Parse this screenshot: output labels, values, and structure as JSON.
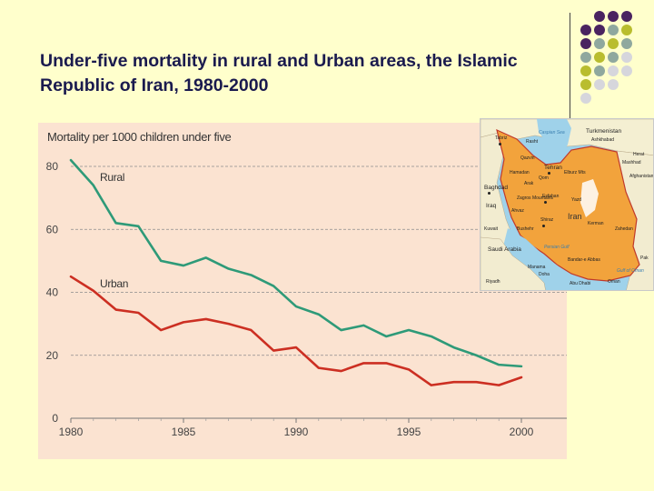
{
  "slide": {
    "title": "Under-five mortality in rural and Urban areas, the Islamic Republic of Iran, 1980-2000"
  },
  "decor": {
    "dot_colors": [
      "#4a2360",
      "#8fa89e",
      "#b9bd2e",
      "#d6d6dc"
    ]
  },
  "chart_data": {
    "type": "line",
    "title": "Mortality per 1000 children under five",
    "xlabel": "",
    "ylabel": "",
    "xlim": [
      1980,
      2000
    ],
    "ylim": [
      0,
      80
    ],
    "xticks": [
      1980,
      1985,
      1990,
      1995,
      2000
    ],
    "yticks": [
      0,
      20,
      40,
      60,
      80
    ],
    "grid": true,
    "series": [
      {
        "name": "Rural",
        "color": "#2e9a78",
        "x": [
          1980,
          1981,
          1982,
          1983,
          1984,
          1985,
          1986,
          1987,
          1988,
          1989,
          1990,
          1991,
          1992,
          1993,
          1994,
          1995,
          1996,
          1997,
          1998,
          1999,
          2000
        ],
        "values": [
          82,
          74,
          62,
          61,
          50,
          48.5,
          51,
          47.5,
          45.5,
          42,
          35.5,
          33,
          28,
          29.5,
          26,
          28,
          26,
          22.5,
          20,
          17,
          16.5
        ]
      },
      {
        "name": "Urban",
        "color": "#cc2f22",
        "x": [
          1980,
          1981,
          1982,
          1983,
          1984,
          1985,
          1986,
          1987,
          1988,
          1989,
          1990,
          1991,
          1992,
          1993,
          1994,
          1995,
          1996,
          1997,
          1998,
          1999,
          2000
        ],
        "values": [
          45,
          40.5,
          34.5,
          33.5,
          28,
          30.5,
          31.5,
          30,
          28,
          21.5,
          22.5,
          16,
          15,
          17.5,
          17.5,
          15.5,
          10.5,
          11.5,
          11.5,
          10.5,
          13
        ]
      }
    ]
  },
  "map": {
    "country": "Iran",
    "labels": {
      "caspian": "Caspian Sea",
      "turkmenistan": "Turkmenistan",
      "ashkhabad": "Ashkhabad",
      "rasht": "Rasht",
      "tabriz": "Tabriz",
      "tehran": "Tehran",
      "qazvin": "Qazvin",
      "mashhad": "Mashhad",
      "hamadan": "Hamadan",
      "elburz": "Elburz Mts",
      "qom": "Qom",
      "arak": "Arak",
      "baghdad": "Baghdad",
      "iraq": "Iraq",
      "ahvaz": "Ahvaz",
      "kuwait": "Kuwait",
      "esfahan": "Esfahan",
      "zagros": "Zagros Mountains",
      "yazd": "Yazd",
      "shiraz": "Shiraz",
      "kerman": "Kerman",
      "zahedan": "Zahedan",
      "bushehr": "Bushehr",
      "persian_gulf": "Persian Gulf",
      "saudi": "Saudi Arabia",
      "bandar_abbas": "Bandar-e Abbas",
      "manama": "Manama",
      "doha": "Doha",
      "riyadh": "Riyadh",
      "abu_dhabi": "Abu Dhabi",
      "oman": "Oman",
      "afghanistan": "Afghanistan",
      "pakistan": "Pak",
      "herat": "Herat",
      "gulf_oman": "Gulf of Oman"
    }
  }
}
